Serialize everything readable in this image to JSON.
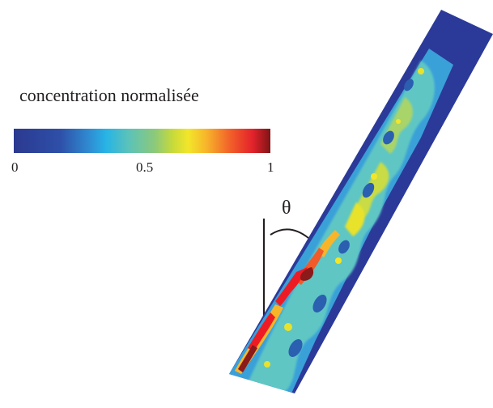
{
  "colorbar": {
    "title": "concentration  normalisée",
    "ticks": [
      {
        "value": 0,
        "label": "0"
      },
      {
        "value": 0.5,
        "label": "0.5"
      },
      {
        "value": 1,
        "label": "1"
      }
    ],
    "colors": [
      "#2b3990",
      "#2e5fb0",
      "#27aae1",
      "#6cc8b0",
      "#a6d27a",
      "#e4e32a",
      "#f7b52a",
      "#f15a29",
      "#ed1c24",
      "#8b1a1a"
    ]
  },
  "angle_label": "θ",
  "channel": {
    "background_color": "#2b3a98",
    "tilt_from_vertical_deg": 30
  }
}
